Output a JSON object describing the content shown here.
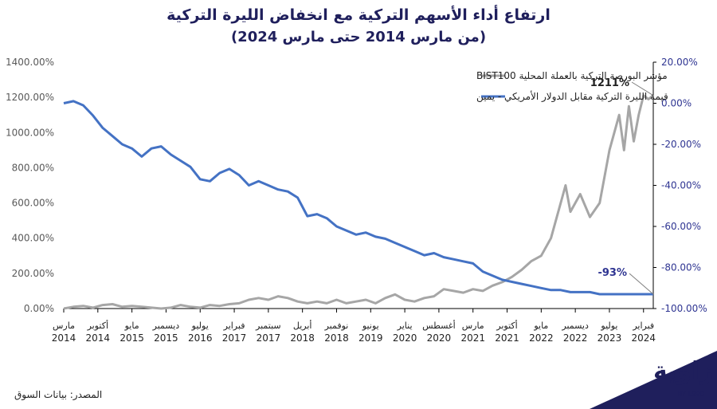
{
  "chart_data": {
    "type": "line",
    "title": "ارتفاع أداء الأسهم التركية مع انخفاض الليرة التركية",
    "subtitle": "(من مارس 2014 حتى مارس 2024)",
    "source": "المصدر: بيانات السوق",
    "brand": {
      "name": "زاوية",
      "sub": "BY LSEG"
    },
    "y_left": {
      "min": 0,
      "max": 1400,
      "ticks": [
        "0.00%",
        "200.00%",
        "400.00%",
        "600.00%",
        "800.00%",
        "1000.00%",
        "1200.00%",
        "1400.00%"
      ]
    },
    "y_right": {
      "min": -100,
      "max": 20,
      "ticks": [
        "-100.00%",
        "-80.00%",
        "-60.00%",
        "-40.00%",
        "-20.00%",
        "0.00%",
        "20.00%"
      ]
    },
    "x_ticks": [
      {
        "t": 0,
        "month": "مارس",
        "year": "2014"
      },
      {
        "t": 7,
        "month": "أكتوبر",
        "year": "2014"
      },
      {
        "t": 14,
        "month": "مايو",
        "year": "2015"
      },
      {
        "t": 21,
        "month": "ديسمبر",
        "year": "2015"
      },
      {
        "t": 28,
        "month": "يوليو",
        "year": "2016"
      },
      {
        "t": 35,
        "month": "فبراير",
        "year": "2017"
      },
      {
        "t": 42,
        "month": "سبتمبر",
        "year": "2017"
      },
      {
        "t": 49,
        "month": "أبريل",
        "year": "2018"
      },
      {
        "t": 56,
        "month": "نوفمبر",
        "year": "2018"
      },
      {
        "t": 63,
        "month": "يونيو",
        "year": "2019"
      },
      {
        "t": 70,
        "month": "يناير",
        "year": "2020"
      },
      {
        "t": 77,
        "month": "أغسطس",
        "year": "2020"
      },
      {
        "t": 84,
        "month": "مارس",
        "year": "2021"
      },
      {
        "t": 91,
        "month": "أكتوبر",
        "year": "2021"
      },
      {
        "t": 98,
        "month": "مايو",
        "year": "2022"
      },
      {
        "t": 105,
        "month": "ديسمبر",
        "year": "2022"
      },
      {
        "t": 112,
        "month": "يوليو",
        "year": "2023"
      },
      {
        "t": 119,
        "month": "فبراير",
        "year": "2024"
      }
    ],
    "series": [
      {
        "name": "مؤشر البورصة التركية بالعملة المحلية BIST100",
        "axis": "left",
        "color": "#a6a6a6",
        "x": [
          0,
          2,
          4,
          6,
          8,
          10,
          12,
          14,
          16,
          18,
          20,
          22,
          24,
          26,
          28,
          30,
          32,
          34,
          36,
          38,
          40,
          42,
          44,
          46,
          48,
          50,
          52,
          54,
          56,
          58,
          60,
          62,
          64,
          66,
          68,
          70,
          72,
          74,
          76,
          78,
          80,
          82,
          84,
          86,
          88,
          90,
          92,
          94,
          96,
          98,
          100,
          102,
          103,
          104,
          106,
          108,
          110,
          112,
          113,
          114,
          115,
          116,
          117,
          118,
          119,
          120,
          121
        ],
        "values": [
          0,
          10,
          15,
          5,
          20,
          25,
          10,
          15,
          10,
          5,
          0,
          5,
          20,
          10,
          5,
          20,
          15,
          25,
          30,
          50,
          60,
          50,
          70,
          60,
          40,
          30,
          40,
          30,
          50,
          30,
          40,
          50,
          30,
          60,
          80,
          50,
          40,
          60,
          70,
          110,
          100,
          90,
          110,
          100,
          130,
          150,
          180,
          220,
          270,
          300,
          400,
          600,
          700,
          550,
          650,
          520,
          600,
          900,
          1000,
          1100,
          900,
          1150,
          950,
          1100,
          1211,
          1190,
          1211
        ],
        "end_label": "1211%"
      },
      {
        "name": "قيمة الليرة التركية مقابل الدولار الأمريكي - يمين",
        "axis": "right",
        "color": "#4472c4",
        "x": [
          0,
          2,
          4,
          6,
          8,
          10,
          12,
          14,
          16,
          18,
          20,
          22,
          24,
          26,
          28,
          30,
          32,
          34,
          36,
          38,
          40,
          42,
          44,
          46,
          48,
          50,
          52,
          54,
          56,
          58,
          60,
          62,
          64,
          66,
          68,
          70,
          72,
          74,
          76,
          78,
          80,
          82,
          84,
          86,
          88,
          90,
          92,
          94,
          96,
          98,
          100,
          102,
          104,
          106,
          108,
          110,
          112,
          114,
          116,
          118,
          120,
          121
        ],
        "values": [
          0,
          1,
          -1,
          -6,
          -12,
          -16,
          -20,
          -22,
          -26,
          -22,
          -21,
          -25,
          -28,
          -31,
          -37,
          -38,
          -34,
          -32,
          -35,
          -40,
          -38,
          -40,
          -42,
          -43,
          -46,
          -55,
          -54,
          -56,
          -60,
          -62,
          -64,
          -63,
          -65,
          -66,
          -68,
          -70,
          -72,
          -74,
          -73,
          -75,
          -76,
          -77,
          -78,
          -82,
          -84,
          -86,
          -87,
          -88,
          -89,
          -90,
          -91,
          -91,
          -92,
          -92,
          -92,
          -93,
          -93,
          -93,
          -93,
          -93,
          -93,
          -93
        ],
        "end_label": "-93%"
      }
    ],
    "grid": false,
    "legend": "top-center"
  }
}
